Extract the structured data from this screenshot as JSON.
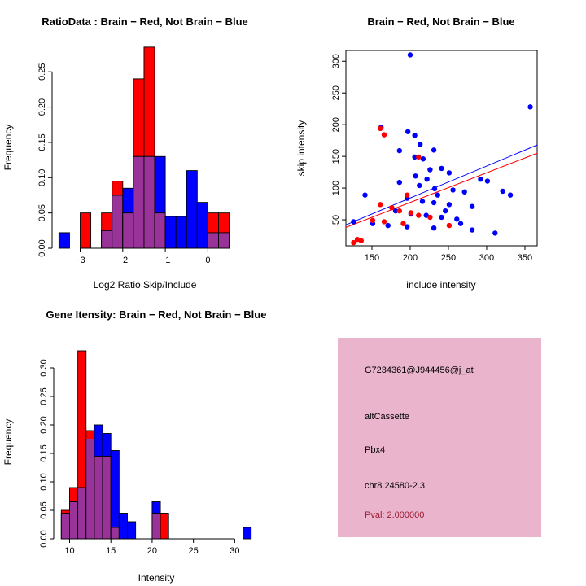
{
  "page": {
    "background": "#ffffff"
  },
  "colors": {
    "brain": "#ff0000",
    "not_brain": "#0000ff",
    "overlap": "#993399"
  },
  "chart_data": [
    {
      "type": "bar",
      "title": "RatioData : Brain − Red, Not Brain − Blue",
      "xlabel": "Log2 Ratio Skip/Include",
      "ylabel": "Frequency",
      "grid": false,
      "legend": "none",
      "bin_start": -3.5,
      "bin_width": 0.25,
      "xlim": [
        -3.66,
        0.7
      ],
      "ylim": [
        0,
        0.286
      ],
      "xtick_values": [
        -3,
        -2,
        -1,
        0
      ],
      "xtick_labels": [
        "−3",
        "−2",
        "−1",
        "0"
      ],
      "ytick_values": [
        0,
        0.05,
        0.1,
        0.15,
        0.2,
        0.25
      ],
      "ytick_labels": [
        "0.00",
        "0.05",
        "0.10",
        "0.15",
        "0.20",
        "0.25"
      ],
      "overlap_color": "#993399",
      "series": [
        {
          "name": "Brain (red)",
          "color": "#ff0000",
          "values": [
            0,
            0,
            0.05,
            0,
            0.05,
            0.095,
            0.05,
            0.24,
            0.285,
            0.05,
            0,
            0,
            0,
            0,
            0.05,
            0.05
          ]
        },
        {
          "name": "Not Brain (blue)",
          "color": "#0000ff",
          "values": [
            0.022,
            0,
            0,
            0,
            0.025,
            0.075,
            0.085,
            0.13,
            0.13,
            0.13,
            0.045,
            0.045,
            0.11,
            0.065,
            0.022,
            0.022
          ]
        }
      ]
    },
    {
      "type": "scatter",
      "title": "Brain − Red, Not Brain − Blue",
      "xlabel": "include intensity",
      "ylabel": "skip intensity",
      "grid": false,
      "legend": "none",
      "xlim": [
        116,
        366
      ],
      "ylim": [
        9,
        317
      ],
      "xtick_values": [
        150,
        200,
        250,
        300,
        350
      ],
      "xtick_labels": [
        "150",
        "200",
        "250",
        "300",
        "350"
      ],
      "ytick_values": [
        50,
        100,
        150,
        200,
        250,
        300
      ],
      "ytick_labels": [
        "50",
        "100",
        "150",
        "200",
        "250",
        "300"
      ],
      "series": [
        {
          "name": "Not Brain (blue)",
          "color": "#0000ff",
          "points": [
            [
              200,
              310
            ],
            [
              357,
              228
            ],
            [
              162,
              196
            ],
            [
              197,
              189
            ],
            [
              206,
              183
            ],
            [
              213,
              169
            ],
            [
              186,
              159
            ],
            [
              231,
              160
            ],
            [
              206,
              149
            ],
            [
              217,
              146
            ],
            [
              241,
              131
            ],
            [
              251,
              124
            ],
            [
              207,
              119
            ],
            [
              222,
              114
            ],
            [
              292,
              114
            ],
            [
              301,
              111
            ],
            [
              212,
              104
            ],
            [
              232,
              99
            ],
            [
              256,
              97
            ],
            [
              271,
              94
            ],
            [
              321,
              95
            ],
            [
              331,
              89
            ],
            [
              141,
              89
            ],
            [
              196,
              84
            ],
            [
              216,
              79
            ],
            [
              231,
              77
            ],
            [
              251,
              74
            ],
            [
              281,
              71
            ],
            [
              181,
              64
            ],
            [
              201,
              59
            ],
            [
              221,
              57
            ],
            [
              241,
              54
            ],
            [
              261,
              51
            ],
            [
              126,
              47
            ],
            [
              151,
              44
            ],
            [
              171,
              41
            ],
            [
              196,
              39
            ],
            [
              231,
              37
            ],
            [
              281,
              34
            ],
            [
              311,
              29
            ],
            [
              246,
              64
            ],
            [
              266,
              44
            ],
            [
              236,
              89
            ],
            [
              186,
              109
            ],
            [
              226,
              129
            ]
          ]
        },
        {
          "name": "Brain (red)",
          "color": "#ff0000",
          "points": [
            [
              161,
              194
            ],
            [
              166,
              184
            ],
            [
              211,
              149
            ],
            [
              196,
              89
            ],
            [
              161,
              74
            ],
            [
              176,
              69
            ],
            [
              186,
              64
            ],
            [
              201,
              61
            ],
            [
              211,
              57
            ],
            [
              226,
              54
            ],
            [
              151,
              49
            ],
            [
              166,
              47
            ],
            [
              191,
              44
            ],
            [
              251,
              41
            ],
            [
              131,
              19
            ],
            [
              136,
              17
            ],
            [
              126,
              14
            ]
          ]
        }
      ],
      "lines": [
        {
          "name": "not-brain-fit",
          "color": "#0000ff",
          "x1": 116,
          "y1": 42,
          "x2": 366,
          "y2": 168
        },
        {
          "name": "brain-fit",
          "color": "#ff0000",
          "x1": 116,
          "y1": 38,
          "x2": 366,
          "y2": 155
        }
      ]
    },
    {
      "type": "bar",
      "title": "Gene Itensity: Brain − Red, Not Brain − Blue",
      "xlabel": "Intensity",
      "ylabel": "Frequency",
      "grid": false,
      "legend": "none",
      "bin_start": 9,
      "bin_width": 1,
      "xlim": [
        8.08,
        32.92
      ],
      "ylim": [
        0,
        0.34
      ],
      "xtick_values": [
        10,
        15,
        20,
        25,
        30
      ],
      "xtick_labels": [
        "10",
        "15",
        "20",
        "25",
        "30"
      ],
      "ytick_values": [
        0,
        0.05,
        0.1,
        0.15,
        0.2,
        0.25,
        0.3
      ],
      "ytick_labels": [
        "0.00",
        "0.05",
        "0.10",
        "0.15",
        "0.20",
        "0.25",
        "0.30"
      ],
      "overlap_color": "#993399",
      "series": [
        {
          "name": "Brain (red)",
          "color": "#ff0000",
          "values": [
            0.05,
            0.09,
            0.33,
            0.19,
            0.145,
            0.145,
            0.02,
            0,
            0,
            0,
            0,
            0.045,
            0.045,
            0,
            0,
            0,
            0,
            0,
            0,
            0,
            0,
            0,
            0
          ]
        },
        {
          "name": "Not Brain (blue)",
          "color": "#0000ff",
          "values": [
            0.045,
            0.065,
            0.09,
            0.175,
            0.2,
            0.185,
            0.155,
            0.045,
            0.03,
            0,
            0,
            0.065,
            0,
            0,
            0,
            0,
            0,
            0,
            0,
            0,
            0,
            0,
            0.02
          ]
        }
      ]
    }
  ],
  "info_box": {
    "background": "#e9b4cc",
    "lines": [
      {
        "text": "G7234361@J944456@j_at",
        "color": "#000000"
      },
      {
        "text": "altCassette",
        "color": "#000000"
      },
      {
        "text": "Pbx4",
        "color": "#000000"
      },
      {
        "text": "chr8.24580-2.3",
        "color": "#000000"
      },
      {
        "text": "Pval: 2.000000",
        "color": "#9e1b32"
      }
    ]
  }
}
